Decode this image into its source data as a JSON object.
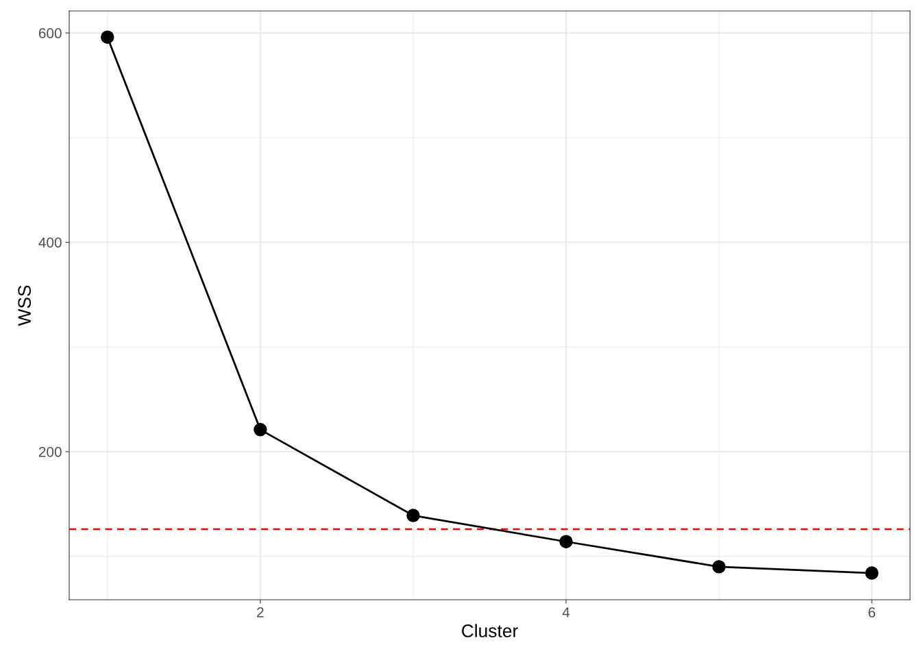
{
  "chart_data": {
    "type": "line",
    "xlabel": "Cluster",
    "ylabel": "WSS",
    "x": [
      1,
      2,
      3,
      4,
      5,
      6
    ],
    "series": [
      {
        "color": "#000000",
        "values": [
          596,
          221,
          139,
          114,
          90,
          84
        ]
      }
    ],
    "xlim": [
      0.75,
      6.25
    ],
    "xticks": [
      2,
      4,
      6
    ],
    "ylim": [
      58.5,
      621
    ],
    "yticks": [
      200,
      400,
      600
    ],
    "ref_lines": [
      {
        "axis": "y",
        "value": 126,
        "color": "#ff0000",
        "line_style": "dashed"
      }
    ],
    "grid": true,
    "marker": "circle",
    "line_style": "solid"
  }
}
